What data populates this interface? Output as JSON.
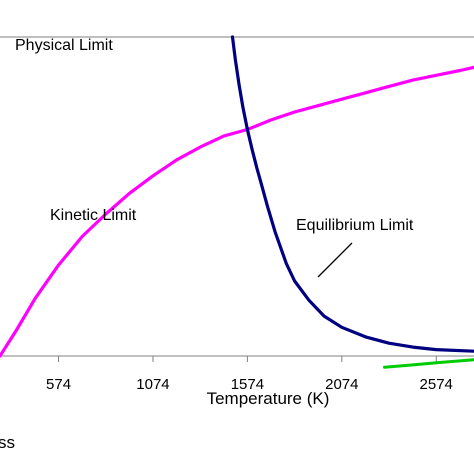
{
  "chart_data": {
    "type": "line",
    "title": "",
    "xlabel": "Temperature (K)",
    "ylabel": "",
    "xlim": [
      264,
      2774
    ],
    "ylim": [
      0,
      1
    ],
    "x_ticks": [
      574,
      1074,
      1574,
      2074,
      2574
    ],
    "grid": false,
    "colors": {
      "physical": "#7f7f7f",
      "kinetic": "#ff00ff",
      "equilibrium": "#000080",
      "green": "#00cc00"
    },
    "series": [
      {
        "key": "kinetic",
        "x": [
          264,
          350,
          450,
          574,
          700,
          824,
          950,
          1074,
          1200,
          1324,
          1450,
          1574,
          1700,
          1824,
          1950,
          2074,
          2200,
          2324,
          2450,
          2574,
          2700,
          2774
        ],
        "values": [
          0.0,
          0.08,
          0.18,
          0.285,
          0.375,
          0.445,
          0.51,
          0.565,
          0.615,
          0.655,
          0.69,
          0.71,
          0.74,
          0.765,
          0.785,
          0.805,
          0.825,
          0.845,
          0.865,
          0.88,
          0.895,
          0.905
        ]
      },
      {
        "key": "equilibrium",
        "x": [
          1495,
          1510,
          1530,
          1550,
          1574,
          1600,
          1624,
          1650,
          1680,
          1720,
          1780,
          1824,
          1900,
          1980,
          2074,
          2200,
          2324,
          2450,
          2574,
          2774
        ],
        "values": [
          1.0,
          0.93,
          0.85,
          0.78,
          0.71,
          0.645,
          0.59,
          0.535,
          0.47,
          0.39,
          0.29,
          0.235,
          0.175,
          0.125,
          0.09,
          0.06,
          0.04,
          0.028,
          0.02,
          0.015
        ]
      },
      {
        "key": "green",
        "x": [
          2300,
          2450,
          2600,
          2774
        ],
        "values": [
          -0.035,
          -0.028,
          -0.02,
          -0.012
        ]
      }
    ],
    "annotations": {
      "physical": "Physical Limit",
      "kinetic": "Kinetic Limit",
      "equilibrium": "Equilibrium Limit"
    },
    "physical_limit_y": 1.0,
    "fragment": "ss"
  }
}
